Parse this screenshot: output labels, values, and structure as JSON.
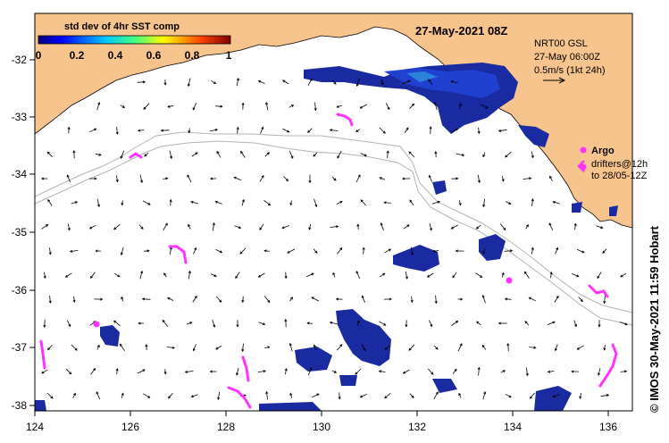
{
  "map": {
    "date_title": "27-May-2021 08Z",
    "colorbar": {
      "title": "std dev of 4hr SST comp",
      "ticks": [
        "0",
        "0.2",
        "0.4",
        "0.6",
        "0.8",
        "1"
      ],
      "range": [
        0,
        1
      ]
    },
    "product": {
      "line1": "NRT00 GSL",
      "line2": "27-May 06:00Z",
      "line3": "0.5m/s (1kt 24h)"
    },
    "argo_label": "Argo",
    "drifters_label": "drifters@12h",
    "drifters_to_label": "to 28/05-12Z",
    "credit": "© IMOS 30-May-2021 11:59 Hobart",
    "lon_ticks": [
      "124",
      "126",
      "128",
      "130",
      "132",
      "134",
      "136"
    ],
    "lat_ticks": [
      "-32",
      "-33",
      "-34",
      "-35",
      "-36",
      "-37",
      "-38"
    ],
    "lon_range": [
      124,
      136.5
    ],
    "lat_range": [
      -38.15,
      -31.3
    ],
    "colors": {
      "land": "#f8c48e",
      "bathymetry": "#b4b4b4",
      "drifter": "#ff33ff",
      "sst_low": "#0a1a8a"
    }
  }
}
